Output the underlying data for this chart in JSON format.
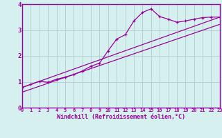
{
  "title": "",
  "xlabel": "Windchill (Refroidissement éolien,°C)",
  "ylabel": "",
  "bg_color": "#d6f0f0",
  "line_color": "#990099",
  "xlim": [
    0,
    23
  ],
  "ylim": [
    0,
    4
  ],
  "xticks": [
    0,
    1,
    2,
    3,
    4,
    5,
    6,
    7,
    8,
    9,
    10,
    11,
    12,
    13,
    14,
    15,
    16,
    17,
    18,
    19,
    20,
    21,
    22,
    23
  ],
  "yticks": [
    0,
    1,
    2,
    3,
    4
  ],
  "line1_x": [
    0,
    1,
    2,
    3,
    4,
    5,
    6,
    7,
    8,
    9,
    10,
    11,
    12,
    13,
    14,
    15,
    16,
    17,
    18,
    19,
    20,
    21,
    22,
    23
  ],
  "line1_y": [
    0.78,
    0.9,
    1.02,
    0.98,
    1.1,
    1.18,
    1.28,
    1.42,
    1.6,
    1.72,
    2.2,
    2.65,
    2.82,
    3.35,
    3.68,
    3.82,
    3.52,
    3.42,
    3.3,
    3.35,
    3.42,
    3.48,
    3.5,
    3.5
  ],
  "line2_x": [
    0,
    23
  ],
  "line2_y": [
    0.78,
    3.5
  ],
  "line3_x": [
    0,
    23
  ],
  "line3_y": [
    0.6,
    3.22
  ],
  "grid_color": "#b0cccc",
  "marker": "+"
}
